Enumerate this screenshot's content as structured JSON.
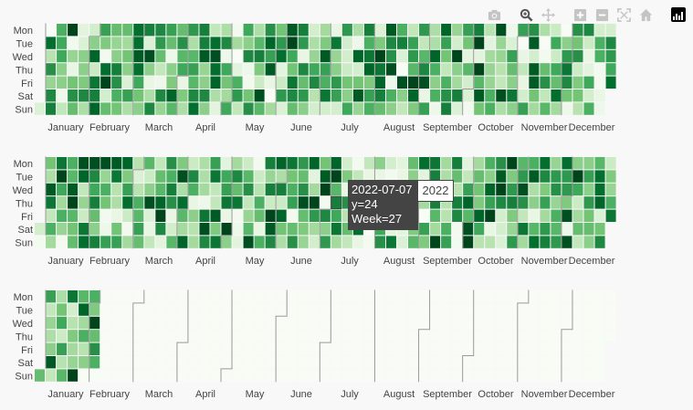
{
  "chart_data": {
    "type": "heatmap",
    "year": 2022,
    "colorscale": [
      "#f7fcf5",
      "#e5f5e0",
      "#c7e9c0",
      "#a1d99b",
      "#74c476",
      "#41ab5d",
      "#238b45",
      "#006d2c",
      "#00441b"
    ],
    "weekday_labels": [
      "Mon",
      "Tue",
      "Wed",
      "Thu",
      "Fri",
      "Sat",
      "Sun"
    ],
    "month_labels": [
      "January",
      "February",
      "March",
      "April",
      "May",
      "June",
      "July",
      "August",
      "September",
      "October",
      "November",
      "December"
    ],
    "value_range": [
      0,
      30
    ],
    "panels": [
      {
        "weeks": 53,
        "cells": [
          [
            null,
            0,
            18,
            30,
            4,
            6,
            20,
            16,
            16,
            26,
            24,
            23,
            20,
            16,
            21,
            24,
            8,
            10,
            1,
            19,
            10,
            22,
            15,
            28,
            24,
            6,
            11,
            3,
            21,
            10,
            24,
            5,
            28,
            18,
            8,
            21,
            10,
            27,
            12,
            20,
            24,
            9,
            29,
            2,
            20,
            22,
            10,
            7,
            0,
            22,
            23,
            6,
            6
          ],
          [
            null,
            26,
            19,
            1,
            5,
            13,
            14,
            12,
            11,
            26,
            5,
            21,
            16,
            22,
            10,
            24,
            26,
            23,
            11,
            13,
            17,
            27,
            21,
            30,
            21,
            10,
            14,
            25,
            6,
            2,
            18,
            14,
            23,
            24,
            20,
            8,
            10,
            20,
            6,
            15,
            30,
            4,
            12,
            5,
            0,
            28,
            0,
            19,
            13,
            15,
            7,
            18,
            23
          ],
          [
            null,
            9,
            19,
            12,
            13,
            27,
            1,
            13,
            15,
            28,
            29,
            16,
            2,
            17,
            17,
            28,
            29,
            2,
            0,
            23,
            24,
            20,
            26,
            19,
            3,
            12,
            28,
            12,
            6,
            27,
            25,
            30,
            22,
            5,
            21,
            17,
            27,
            15,
            30,
            4,
            4,
            11,
            12,
            20,
            3,
            6,
            1,
            7,
            21,
            22,
            3,
            18,
            21
          ],
          [
            null,
            22,
            13,
            3,
            13,
            7,
            26,
            24,
            13,
            26,
            13,
            8,
            13,
            19,
            20,
            12,
            26,
            19,
            4,
            2,
            14,
            28,
            4,
            15,
            23,
            19,
            20,
            13,
            7,
            6,
            27,
            25,
            29,
            0,
            17,
            23,
            18,
            8,
            13,
            17,
            30,
            12,
            9,
            16,
            8,
            28,
            16,
            19,
            25,
            7,
            4,
            1,
            19
          ],
          [
            null,
            12,
            13,
            15,
            14,
            25,
            30,
            22,
            5,
            19,
            3,
            2,
            14,
            3,
            17,
            13,
            27,
            15,
            18,
            1,
            7,
            3,
            7,
            25,
            16,
            23,
            18,
            21,
            15,
            15,
            14,
            27,
            2,
            29,
            30,
            29,
            13,
            18,
            11,
            6,
            17,
            12,
            8,
            13,
            3,
            28,
            22,
            16,
            23,
            14,
            19,
            1,
            26
          ],
          [
            null,
            23,
            2,
            22,
            23,
            24,
            6,
            18,
            20,
            15,
            10,
            23,
            27,
            14,
            23,
            23,
            10,
            11,
            21,
            15,
            29,
            0,
            21,
            23,
            21,
            9,
            25,
            20,
            13,
            28,
            20,
            24,
            18,
            13,
            27,
            3,
            18,
            22,
            24,
            5,
            28,
            18,
            29,
            25,
            6,
            15,
            8,
            26,
            15,
            15,
            6,
            3,
            null
          ],
          [
            5,
            24,
            8,
            16,
            10,
            27,
            16,
            15,
            10,
            13,
            23,
            12,
            17,
            10,
            26,
            13,
            4,
            19,
            8,
            22,
            17,
            11,
            5,
            16,
            13,
            6,
            6,
            6,
            19,
            12,
            18,
            16,
            13,
            8,
            14,
            20,
            2,
            24,
            5,
            1,
            15,
            18,
            10,
            13,
            20,
            11,
            17,
            11,
            2,
            9,
            18,
            2,
            null
          ]
        ]
      },
      {
        "weeks": 53,
        "cells": [
          [
            null,
            15,
            25,
            18,
            29,
            29,
            29,
            28,
            27,
            9,
            17,
            8,
            22,
            14,
            7,
            10,
            20,
            4,
            11,
            7,
            1,
            24,
            27,
            25,
            21,
            27,
            15,
            27,
            6,
            1,
            8,
            13,
            6,
            4,
            16,
            26,
            25,
            11,
            24,
            4,
            11,
            18,
            22,
            30,
            17,
            18,
            26,
            12,
            26,
            13,
            13,
            17,
            7
          ],
          [
            null,
            10,
            30,
            17,
            27,
            23,
            12,
            25,
            14,
            5,
            7,
            16,
            18,
            29,
            23,
            10,
            25,
            19,
            23,
            17,
            7,
            12,
            10,
            15,
            16,
            4,
            28,
            30,
            14,
            8,
            3,
            3,
            1,
            3,
            13,
            4,
            24,
            10,
            16,
            8,
            16,
            13,
            28,
            14,
            21,
            28,
            23,
            21,
            21,
            30,
            20,
            26,
            14
          ],
          [
            null,
            28,
            19,
            28,
            8,
            19,
            18,
            9,
            20,
            9,
            13,
            17,
            24,
            10,
            18,
            11,
            8,
            20,
            16,
            22,
            9,
            24,
            24,
            18,
            22,
            11,
            30,
            17,
            3,
            6,
            4,
            2,
            0,
            0,
            19,
            17,
            23,
            3,
            9,
            20,
            15,
            27,
            30,
            21,
            29,
            10,
            14,
            22,
            21,
            19,
            13,
            26,
            12
          ],
          [
            null,
            25,
            11,
            30,
            12,
            24,
            15,
            10,
            26,
            18,
            29,
            27,
            22,
            26,
            3,
            2,
            8,
            25,
            25,
            8,
            18,
            7,
            7,
            20,
            29,
            30,
            1,
            24,
            22,
            16,
            13,
            29,
            1,
            1,
            30,
            11,
            24,
            9,
            24,
            27,
            14,
            20,
            23,
            24,
            22,
            13,
            20,
            12,
            14,
            7,
            21,
            27,
            18
          ],
          [
            null,
            8,
            18,
            17,
            7,
            16,
            1,
            3,
            7,
            17,
            5,
            30,
            3,
            17,
            13,
            25,
            28,
            3,
            1,
            12,
            16,
            30,
            27,
            1,
            16,
            21,
            23,
            19,
            9,
            28,
            14,
            20,
            1,
            12,
            4,
            0,
            17,
            9,
            23,
            17,
            27,
            30,
            6,
            14,
            8,
            3,
            11,
            18,
            29,
            11,
            15,
            5,
            25
          ],
          [
            6,
            18,
            12,
            15,
            25,
            13,
            2,
            15,
            1,
            20,
            3,
            23,
            6,
            11,
            9,
            29,
            14,
            30,
            2,
            17,
            3,
            28,
            15,
            16,
            14,
            11,
            13,
            25,
            16,
            26,
            0,
            19,
            4,
            4,
            14,
            20,
            11,
            18,
            1,
            29,
            19,
            3,
            6,
            12,
            25,
            17,
            21,
            17,
            2,
            16,
            16,
            15,
            null
          ],
          [
            1,
            11,
            1,
            16,
            26,
            24,
            20,
            20,
            11,
            16,
            8,
            4,
            17,
            27,
            11,
            23,
            25,
            13,
            4,
            29,
            18,
            23,
            10,
            22,
            12,
            6,
            21,
            11,
            8,
            3,
            1,
            22,
            25,
            5,
            17,
            14,
            30,
            20,
            1,
            30,
            9,
            9,
            5,
            21,
            11,
            26,
            24,
            21,
            29,
            8,
            13,
            23,
            null
          ]
        ]
      },
      {
        "weeks": 53,
        "cells": [
          [
            null,
            20,
            10,
            25,
            17,
            18,
            0,
            0,
            0,
            0,
            0,
            0,
            0,
            0,
            0,
            0,
            0,
            0,
            0,
            0,
            0,
            0,
            0,
            0,
            0,
            0,
            0,
            0,
            0,
            0,
            0,
            0,
            0,
            0,
            0,
            0,
            0,
            0,
            0,
            0,
            0,
            0,
            0,
            0,
            0,
            0,
            0,
            0,
            0,
            0,
            0,
            0,
            0
          ],
          [
            null,
            8,
            15,
            6,
            27,
            14,
            0,
            0,
            0,
            0,
            0,
            0,
            0,
            0,
            0,
            0,
            0,
            0,
            0,
            0,
            0,
            0,
            0,
            0,
            0,
            0,
            0,
            0,
            0,
            0,
            0,
            0,
            0,
            0,
            0,
            0,
            0,
            0,
            0,
            0,
            0,
            0,
            0,
            0,
            0,
            0,
            0,
            0,
            0,
            0,
            0,
            0,
            0
          ],
          [
            null,
            12,
            19,
            9,
            11,
            30,
            0,
            0,
            0,
            0,
            0,
            0,
            0,
            0,
            0,
            0,
            0,
            0,
            0,
            0,
            0,
            0,
            0,
            0,
            0,
            0,
            0,
            0,
            0,
            0,
            0,
            0,
            0,
            0,
            0,
            0,
            0,
            0,
            0,
            0,
            0,
            0,
            0,
            0,
            0,
            0,
            0,
            0,
            0,
            0,
            0,
            0,
            0
          ],
          [
            null,
            10,
            7,
            14,
            18,
            16,
            0,
            0,
            0,
            0,
            0,
            0,
            0,
            0,
            0,
            0,
            0,
            0,
            0,
            0,
            0,
            0,
            0,
            0,
            0,
            0,
            0,
            0,
            0,
            0,
            0,
            0,
            0,
            0,
            0,
            0,
            0,
            0,
            0,
            0,
            0,
            0,
            0,
            0,
            0,
            0,
            0,
            0,
            0,
            0,
            0,
            0,
            0
          ],
          [
            null,
            13,
            20,
            11,
            9,
            22,
            0,
            0,
            0,
            0,
            0,
            0,
            0,
            0,
            0,
            0,
            0,
            0,
            0,
            0,
            0,
            0,
            0,
            0,
            0,
            0,
            0,
            0,
            0,
            0,
            0,
            0,
            0,
            0,
            0,
            0,
            0,
            0,
            0,
            0,
            0,
            0,
            0,
            0,
            0,
            0,
            0,
            0,
            0,
            0,
            0,
            0,
            null
          ],
          [
            null,
            28,
            9,
            12,
            13,
            18,
            0,
            0,
            0,
            0,
            0,
            0,
            0,
            0,
            0,
            0,
            0,
            0,
            0,
            0,
            0,
            0,
            0,
            0,
            0,
            0,
            0,
            0,
            0,
            0,
            0,
            0,
            0,
            0,
            0,
            0,
            0,
            0,
            0,
            0,
            0,
            0,
            0,
            0,
            0,
            0,
            0,
            0,
            0,
            0,
            0,
            0,
            null
          ],
          [
            16,
            8,
            17,
            30,
            0,
            0,
            0,
            0,
            0,
            0,
            0,
            0,
            0,
            0,
            0,
            0,
            0,
            0,
            0,
            0,
            0,
            0,
            0,
            0,
            0,
            0,
            0,
            0,
            0,
            0,
            0,
            0,
            0,
            0,
            0,
            0,
            0,
            0,
            0,
            0,
            0,
            0,
            0,
            0,
            0,
            0,
            0,
            0,
            0,
            0,
            0,
            0,
            null
          ]
        ]
      }
    ],
    "hover": {
      "panel": 1,
      "date": "2022-07-07",
      "y_label": "y=24",
      "week_label": "Week=27",
      "trace_name": "2022"
    }
  },
  "modebar": {
    "buttons": [
      {
        "name": "camera-icon",
        "group": 0
      },
      {
        "name": "zoom-icon",
        "group": 1
      },
      {
        "name": "pan-icon",
        "group": 1
      },
      {
        "name": "zoom-in-icon",
        "group": 2
      },
      {
        "name": "zoom-out-icon",
        "group": 2
      },
      {
        "name": "autoscale-icon",
        "group": 2
      },
      {
        "name": "home-icon",
        "group": 2
      },
      {
        "name": "plotly-logo-icon",
        "group": 3
      }
    ],
    "colors": {
      "inactive": "#c4c4c4",
      "active": "#555555"
    }
  }
}
